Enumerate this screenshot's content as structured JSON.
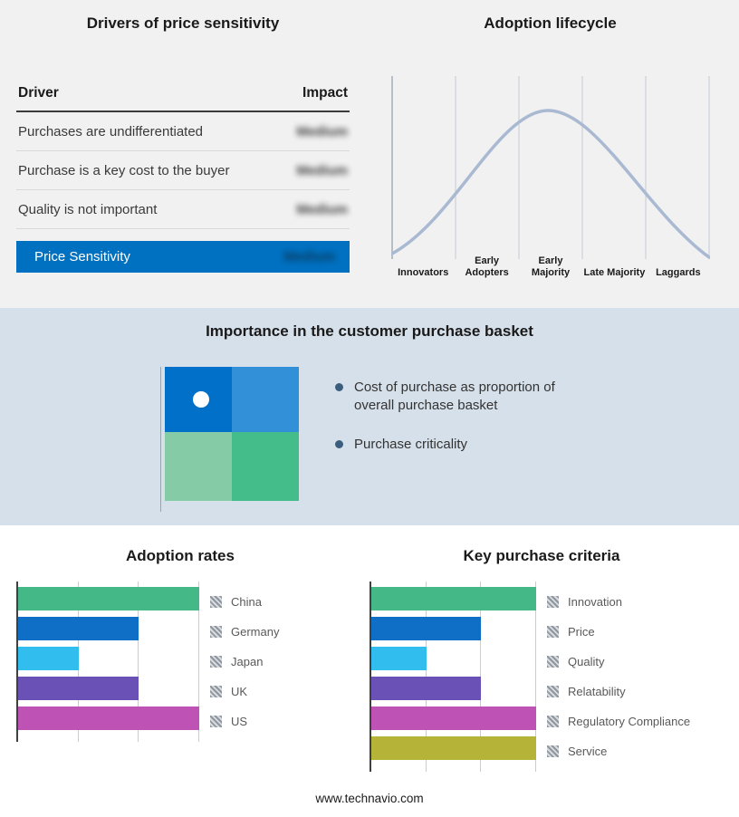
{
  "price_sensitivity": {
    "title": "Drivers of price sensitivity",
    "columns": {
      "driver": "Driver",
      "impact": "Impact"
    },
    "rows": [
      {
        "driver": "Purchases are undifferentiated",
        "impact": "Medium"
      },
      {
        "driver": "Purchase is a key cost to the buyer",
        "impact": "Medium"
      },
      {
        "driver": "Quality is not important",
        "impact": "Medium"
      }
    ],
    "highlight_row": {
      "driver": "Price Sensitivity",
      "impact": "Medium"
    },
    "highlight_color": "#0070c0"
  },
  "adoption_lifecycle": {
    "title": "Adoption lifecycle",
    "stages": [
      "Innovators",
      "Early Adopters",
      "Early Majority",
      "Late Majority",
      "Laggards"
    ],
    "curve_color": "#aab9d2"
  },
  "purchase_basket": {
    "title": "Importance in the customer purchase basket",
    "bullets": [
      "Cost of purchase as proportion of overall purchase basket",
      "Purchase criticality"
    ],
    "quadrant_colors": [
      "#0070c8",
      "#3290d8",
      "#84cba6",
      "#45bd8b"
    ],
    "background": "#d6e0ea"
  },
  "chart_data": [
    {
      "type": "bar",
      "title": "Adoption rates",
      "orientation": "horizontal",
      "categories": [
        "China",
        "Germany",
        "Japan",
        "UK",
        "US"
      ],
      "values": [
        3,
        2,
        1,
        2,
        3
      ],
      "xlim": [
        0,
        3
      ],
      "bar_colors": [
        "#45b887",
        "#0f6fc6",
        "#32bdef",
        "#6a51b5",
        "#bf53b5"
      ],
      "grid": true,
      "legend_position": "right"
    },
    {
      "type": "bar",
      "title": "Key purchase criteria",
      "orientation": "horizontal",
      "categories": [
        "Innovation",
        "Price",
        "Quality",
        "Relatability",
        "Regulatory Compliance",
        "Service"
      ],
      "values": [
        3,
        2,
        1,
        2,
        3,
        3
      ],
      "xlim": [
        0,
        3
      ],
      "bar_colors": [
        "#45b887",
        "#0f6fc6",
        "#32bdef",
        "#6a51b5",
        "#bf53b5",
        "#b5b338"
      ],
      "grid": true,
      "legend_position": "right"
    }
  ],
  "footer": {
    "url": "www.technavio.com"
  }
}
